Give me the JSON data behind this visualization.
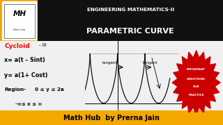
{
  "bg_main": "#f0f0f0",
  "bg_header_top": "#f0a500",
  "bg_black": "#111111",
  "bg_footer": "#f5a800",
  "header_eng": "ENGINEERING MATHEMATICS-II",
  "header_param": "PARAMETRIC CURVE",
  "logo_main": "MH",
  "logo_sub": "Math Hub",
  "cycloid_label": "Cycloid",
  "cycloid_roman": "- III",
  "eq1": "x= a(t – Sint)",
  "eq2": "y= a(1+ Cost)",
  "region_label": "Region-",
  "region_val": "0 ≤ y ≤ 2a",
  "x_range": "-∞≤ x ≤ ∞",
  "tangent1": "tangent",
  "tangent2": "tangent",
  "footer_text": "Math Hub  by Prerna Jain",
  "badge_lines": [
    "IMPORTANT",
    "QUESTIONS",
    "FOR",
    "PRACTICE"
  ],
  "badge_color": "#cc0000",
  "curve_color": "#111111",
  "a": 1.0,
  "plot_xlim": [
    -7.5,
    16.0
  ],
  "plot_ylim": [
    -0.3,
    2.5
  ]
}
